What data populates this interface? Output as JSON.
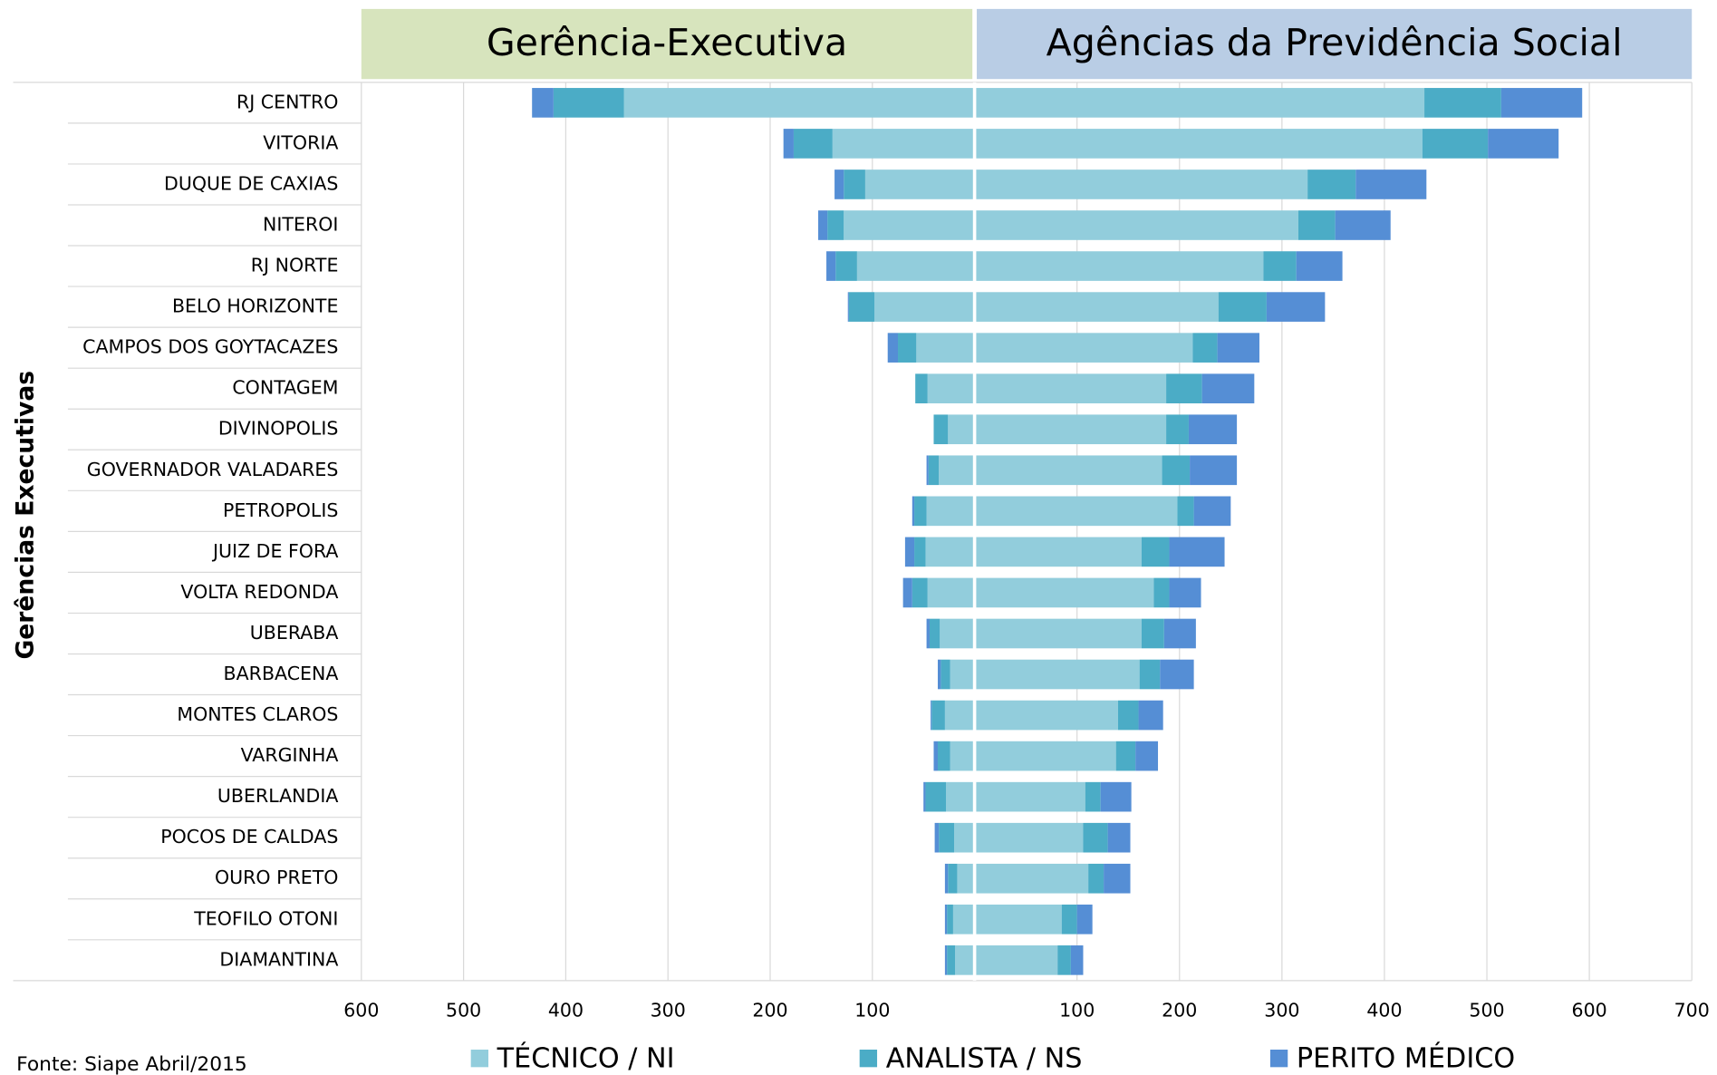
{
  "chart_data": {
    "type": "bar",
    "orientation": "horizontal",
    "y_axis_label": "Gerências Executivas",
    "source": "Fonte: Siape Abril/2015",
    "categories": [
      "RJ CENTRO",
      "VITORIA",
      "DUQUE DE CAXIAS",
      "NITEROI",
      "RJ NORTE",
      "BELO HORIZONTE",
      "CAMPOS DOS GOYTACAZES",
      "CONTAGEM",
      "DIVINOPOLIS",
      "GOVERNADOR VALADARES",
      "PETROPOLIS",
      "JUIZ DE FORA",
      "VOLTA REDONDA",
      "UBERABA",
      "BARBACENA",
      "MONTES CLAROS",
      "VARGINHA",
      "UBERLANDIA",
      "POCOS DE CALDAS",
      "OURO PRETO",
      "TEOFILO OTONI",
      "DIAMANTINA"
    ],
    "series": [
      {
        "name": "TÉCNICO / NI",
        "color": "#92cddc"
      },
      {
        "name": "ANALISTA / NS",
        "color": "#4bacc6"
      },
      {
        "name": "PERITO MÉDICO",
        "color": "#558ed5"
      }
    ],
    "panels": [
      {
        "title": "Gerência-Executiva",
        "header_color": "#d7e4bd",
        "direction": "left",
        "xlim": [
          0,
          600
        ],
        "xticks": [
          100,
          200,
          300,
          400,
          500,
          600
        ],
        "values": [
          [
            343,
            139,
            107,
            128,
            115,
            98,
            57,
            46,
            26,
            35,
            47,
            48,
            46,
            34,
            24,
            29,
            24,
            28,
            20,
            17,
            21,
            19
          ],
          [
            69,
            38,
            21,
            16,
            21,
            25,
            18,
            12,
            14,
            10,
            12,
            11,
            15,
            10,
            9,
            13,
            12,
            20,
            15,
            9,
            6,
            8
          ],
          [
            21,
            10,
            9,
            9,
            9,
            1,
            10,
            0,
            0,
            2,
            2,
            9,
            9,
            3,
            3,
            1,
            4,
            2,
            4,
            3,
            2,
            2
          ]
        ]
      },
      {
        "title": "Agências da Previdência Social",
        "header_color": "#b9cde5",
        "direction": "right",
        "xlim": [
          0,
          700
        ],
        "xticks": [
          100,
          200,
          300,
          400,
          500,
          600,
          700
        ],
        "values": [
          [
            439,
            437,
            325,
            316,
            282,
            238,
            213,
            187,
            187,
            183,
            198,
            163,
            175,
            163,
            161,
            140,
            138,
            108,
            106,
            111,
            85,
            81
          ],
          [
            75,
            64,
            47,
            36,
            32,
            47,
            24,
            35,
            22,
            27,
            16,
            27,
            15,
            22,
            20,
            20,
            19,
            15,
            24,
            15,
            15,
            13
          ],
          [
            79,
            69,
            69,
            54,
            45,
            57,
            41,
            51,
            47,
            46,
            36,
            54,
            31,
            31,
            33,
            24,
            22,
            30,
            22,
            26,
            15,
            12
          ]
        ]
      }
    ],
    "grid": true
  }
}
